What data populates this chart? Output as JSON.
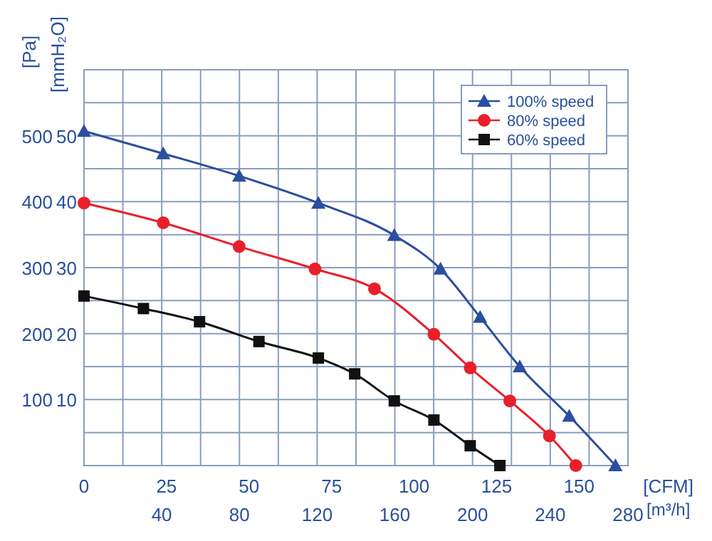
{
  "chart_data": {
    "type": "line",
    "xlabel": "[CFM]",
    "x2label": "[m³/h]",
    "ylabel": "[Pa]",
    "y2label": "[mmH₂O]",
    "xlim": [
      0,
      164.8
    ],
    "xticks": [
      0,
      25,
      50,
      75,
      100,
      125,
      150
    ],
    "x2lim": [
      0,
      280
    ],
    "x2ticks": [
      {
        "value": 20,
        "label": null
      },
      40,
      {
        "value": 60,
        "label": null
      },
      80,
      {
        "value": 100,
        "label": null
      },
      120,
      {
        "value": 140,
        "label": null
      },
      160,
      {
        "value": 180,
        "label": null
      },
      200,
      {
        "value": 220,
        "label": null
      },
      240,
      {
        "value": 260,
        "label": null
      },
      280
    ],
    "ylim": [
      0,
      600
    ],
    "yticks": [
      {
        "value": 0,
        "label": null
      },
      {
        "value": 50,
        "label": null
      },
      100,
      {
        "value": 150,
        "label": null
      },
      200,
      {
        "value": 250,
        "label": null
      },
      300,
      {
        "value": 350,
        "label": null
      },
      400,
      {
        "value": 450,
        "label": null
      },
      500,
      {
        "value": 550,
        "label": null
      },
      {
        "value": 600,
        "label": null
      }
    ],
    "y2lim": [
      0,
      60
    ],
    "y2ticks": [
      10,
      20,
      30,
      40,
      50
    ],
    "grid": true,
    "legend": "top right",
    "line_style": "solid",
    "series": [
      {
        "name": "100% speed",
        "color": "#2a4f9e",
        "marker": "triangle",
        "x": [
          0,
          24,
          47,
          71,
          94,
          108,
          120,
          132,
          147,
          161
        ],
        "values": [
          507,
          473,
          439,
          398,
          349,
          298,
          225,
          150,
          75,
          0
        ]
      },
      {
        "name": "80% speed",
        "color": "#e8202a",
        "marker": "circle",
        "x": [
          0,
          24,
          47,
          70,
          88,
          106,
          117,
          129,
          141,
          149
        ],
        "values": [
          398,
          368,
          332,
          298,
          268,
          199,
          148,
          98,
          45,
          0
        ]
      },
      {
        "name": "60% speed",
        "color": "#111111",
        "marker": "square",
        "x": [
          0,
          18,
          35,
          53,
          71,
          82,
          94,
          106,
          117,
          126
        ],
        "values": [
          257,
          238,
          218,
          188,
          163,
          139,
          98,
          69,
          30,
          0
        ]
      }
    ]
  }
}
